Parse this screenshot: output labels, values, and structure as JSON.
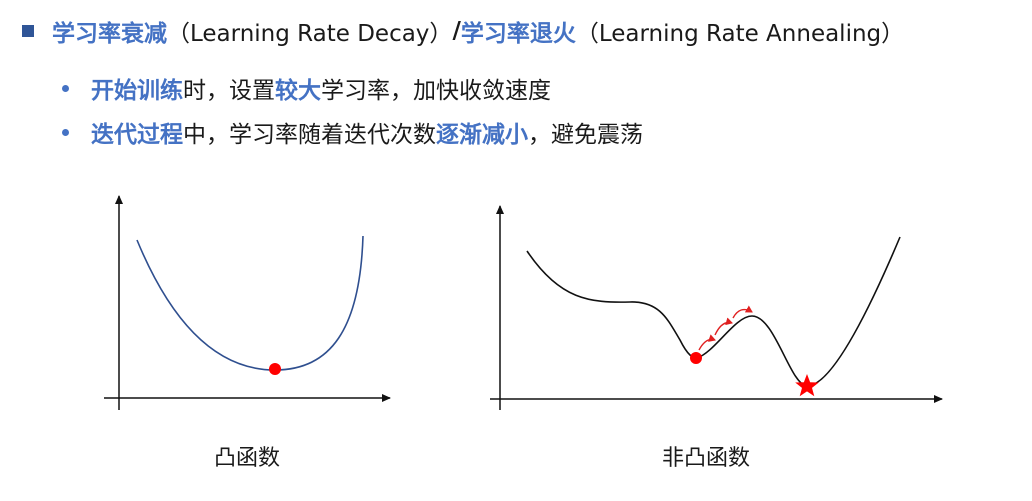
{
  "title": {
    "part1": "学习率衰减",
    "part2": "（Learning Rate Decay）",
    "slash": "/",
    "part3": "学习率退火",
    "part4": "（Learning Rate Annealing）"
  },
  "bullets": [
    {
      "seg1": "开始训练",
      "seg2": "时，设置",
      "seg3": "较大",
      "seg4": "学习率，加快收敛速度"
    },
    {
      "seg1": "迭代过程",
      "seg2": "中，学习率随着迭代次数",
      "seg3": "逐渐减小",
      "seg4": "，避免震荡"
    }
  ],
  "figures": {
    "left_caption": "凸函数",
    "right_caption": "非凸函数",
    "convex_curve_color": "#2f4f8f",
    "nonconvex_curve_color": "#111111",
    "marker_color": "#ff0000"
  }
}
